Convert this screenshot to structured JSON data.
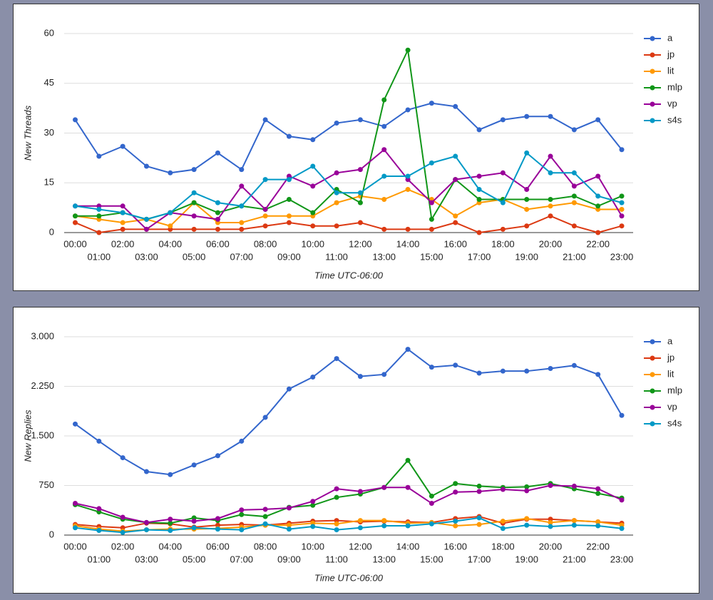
{
  "chart_data": [
    {
      "type": "line",
      "y_label": "New Threads",
      "x_label": "Time UTC-06:00",
      "categories": [
        "00:00",
        "01:00",
        "02:00",
        "03:00",
        "04:00",
        "05:00",
        "06:00",
        "07:00",
        "08:00",
        "09:00",
        "10:00",
        "11:00",
        "12:00",
        "13:00",
        "14:00",
        "15:00",
        "16:00",
        "17:00",
        "18:00",
        "19:00",
        "20:00",
        "21:00",
        "22:00",
        "23:00"
      ],
      "ylim": [
        0,
        60
      ],
      "yticks": [
        0,
        15,
        30,
        45,
        60
      ],
      "grid": true,
      "legend": "right",
      "series": [
        {
          "name": "a",
          "color": "#3366cc",
          "values": [
            34,
            23,
            26,
            20,
            18,
            19,
            24,
            19,
            34,
            29,
            28,
            33,
            34,
            32,
            37,
            39,
            38,
            31,
            34,
            35,
            35,
            31,
            34,
            25
          ]
        },
        {
          "name": "jp",
          "color": "#dc3912",
          "values": [
            3,
            0,
            1,
            1,
            1,
            1,
            1,
            1,
            2,
            3,
            2,
            2,
            3,
            1,
            1,
            1,
            3,
            0,
            1,
            2,
            5,
            2,
            0,
            2
          ]
        },
        {
          "name": "lit",
          "color": "#ff9900",
          "values": [
            5,
            4,
            3,
            4,
            2,
            9,
            3,
            3,
            5,
            5,
            5,
            9,
            11,
            10,
            13,
            10,
            5,
            9,
            10,
            7,
            8,
            9,
            7,
            7
          ]
        },
        {
          "name": "mlp",
          "color": "#109618",
          "values": [
            5,
            5,
            6,
            4,
            6,
            9,
            6,
            8,
            7,
            10,
            6,
            13,
            9,
            40,
            55,
            4,
            16,
            10,
            10,
            10,
            10,
            11,
            8,
            11
          ]
        },
        {
          "name": "vp",
          "color": "#990099",
          "values": [
            8,
            8,
            8,
            1,
            6,
            5,
            4,
            14,
            7,
            17,
            14,
            18,
            19,
            25,
            16,
            9,
            16,
            17,
            18,
            13,
            23,
            14,
            17,
            5
          ]
        },
        {
          "name": "s4s",
          "color": "#0099c6",
          "values": [
            8,
            7,
            6,
            4,
            6,
            12,
            9,
            8,
            16,
            16,
            20,
            12,
            12,
            17,
            17,
            21,
            23,
            13,
            9,
            24,
            18,
            18,
            11,
            9
          ]
        }
      ]
    },
    {
      "type": "line",
      "y_label": "New Replies",
      "x_label": "Time UTC-06:00",
      "categories": [
        "00:00",
        "01:00",
        "02:00",
        "03:00",
        "04:00",
        "05:00",
        "06:00",
        "07:00",
        "08:00",
        "09:00",
        "10:00",
        "11:00",
        "12:00",
        "13:00",
        "14:00",
        "15:00",
        "16:00",
        "17:00",
        "18:00",
        "19:00",
        "20:00",
        "21:00",
        "22:00",
        "23:00"
      ],
      "ylim": [
        0,
        3000
      ],
      "yticks": [
        0,
        750,
        {
          "value": 1500,
          "label": "1.500"
        },
        {
          "value": 2250,
          "label": "2.250"
        },
        {
          "value": 3000,
          "label": "3.000"
        }
      ],
      "grid": true,
      "legend": "right",
      "series": [
        {
          "name": "a",
          "color": "#3366cc",
          "values": [
            1680,
            1420,
            1170,
            960,
            915,
            1060,
            1200,
            1420,
            1780,
            2210,
            2390,
            2670,
            2400,
            2430,
            2810,
            2540,
            2570,
            2450,
            2480,
            2480,
            2520,
            2565,
            2430,
            1810
          ]
        },
        {
          "name": "jp",
          "color": "#dc3912",
          "values": [
            160,
            130,
            110,
            180,
            170,
            120,
            150,
            160,
            150,
            180,
            210,
            220,
            200,
            210,
            200,
            190,
            250,
            280,
            180,
            240,
            240,
            220,
            200,
            180
          ]
        },
        {
          "name": "lit",
          "color": "#ff9900",
          "values": [
            140,
            90,
            60,
            80,
            90,
            90,
            100,
            120,
            150,
            150,
            180,
            170,
            220,
            220,
            180,
            190,
            140,
            160,
            210,
            250,
            190,
            220,
            200,
            150
          ]
        },
        {
          "name": "mlp",
          "color": "#109618",
          "values": [
            460,
            350,
            240,
            190,
            180,
            260,
            220,
            310,
            280,
            420,
            450,
            570,
            620,
            720,
            1130,
            590,
            780,
            740,
            720,
            730,
            780,
            700,
            630,
            560
          ]
        },
        {
          "name": "vp",
          "color": "#990099",
          "values": [
            480,
            400,
            270,
            190,
            240,
            210,
            250,
            380,
            390,
            410,
            510,
            700,
            660,
            720,
            720,
            480,
            650,
            660,
            690,
            670,
            750,
            740,
            700,
            530
          ]
        },
        {
          "name": "s4s",
          "color": "#0099c6",
          "values": [
            110,
            70,
            40,
            80,
            70,
            110,
            90,
            80,
            170,
            90,
            130,
            80,
            110,
            140,
            140,
            170,
            210,
            260,
            100,
            150,
            130,
            150,
            140,
            100
          ]
        }
      ]
    }
  ]
}
